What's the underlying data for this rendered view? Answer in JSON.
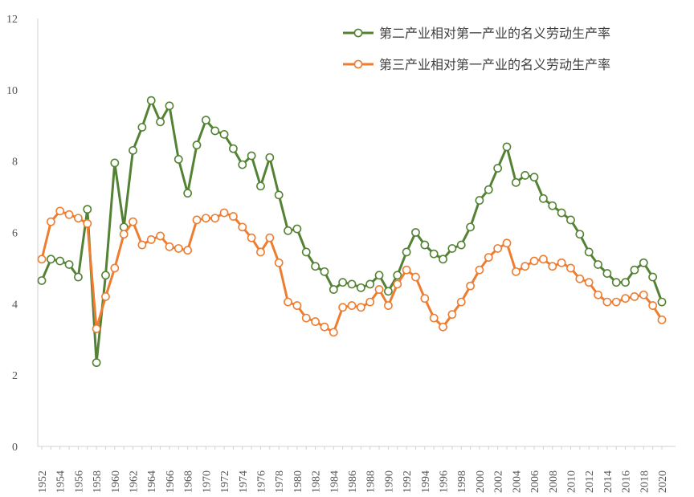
{
  "chart_data": {
    "type": "line",
    "title": "",
    "xlabel": "",
    "ylabel": "",
    "ylim": [
      0,
      12
    ],
    "yticks": [
      0,
      2,
      4,
      6,
      8,
      10,
      12
    ],
    "x": [
      1952,
      1953,
      1954,
      1955,
      1956,
      1957,
      1958,
      1959,
      1960,
      1961,
      1962,
      1963,
      1964,
      1965,
      1966,
      1967,
      1968,
      1969,
      1970,
      1971,
      1972,
      1973,
      1974,
      1975,
      1976,
      1977,
      1978,
      1979,
      1980,
      1981,
      1982,
      1983,
      1984,
      1985,
      1986,
      1987,
      1988,
      1989,
      1990,
      1991,
      1992,
      1993,
      1994,
      1995,
      1996,
      1997,
      1998,
      1999,
      2000,
      2001,
      2002,
      2003,
      2004,
      2005,
      2006,
      2007,
      2008,
      2009,
      2010,
      2011,
      2012,
      2013,
      2014,
      2015,
      2016,
      2017,
      2018,
      2019,
      2020
    ],
    "x_tick_labels": [
      "1952",
      "1954",
      "1956",
      "1958",
      "1960",
      "1962",
      "1964",
      "1966",
      "1968",
      "1970",
      "1972",
      "1974",
      "1976",
      "1978",
      "1980",
      "1982",
      "1984",
      "1986",
      "1988",
      "1990",
      "1992",
      "1994",
      "1996",
      "1998",
      "2000",
      "2002",
      "2004",
      "2006",
      "2008",
      "2010",
      "2012",
      "2014",
      "2016",
      "2018",
      "2020"
    ],
    "grid": false,
    "legend_position": "top-right",
    "series": [
      {
        "name": "第二产业相对第一产业的名义劳动生产率",
        "color": "#548235",
        "values": [
          4.65,
          5.25,
          5.2,
          5.1,
          4.75,
          6.65,
          2.35,
          4.8,
          7.95,
          6.15,
          8.3,
          8.95,
          9.7,
          9.1,
          9.55,
          8.05,
          7.1,
          8.45,
          9.15,
          8.85,
          8.75,
          8.35,
          7.9,
          8.15,
          7.3,
          8.1,
          7.05,
          6.05,
          6.1,
          5.45,
          5.05,
          4.9,
          4.4,
          4.6,
          4.55,
          4.45,
          4.55,
          4.8,
          4.35,
          4.8,
          5.45,
          6.0,
          5.65,
          5.4,
          5.25,
          5.55,
          5.65,
          6.15,
          6.9,
          7.2,
          7.8,
          8.4,
          7.4,
          7.6,
          7.55,
          6.95,
          6.75,
          6.55,
          6.35,
          5.95,
          5.45,
          5.1,
          4.85,
          4.6,
          4.6,
          4.95,
          5.15,
          4.75,
          4.05
        ]
      },
      {
        "name": "第三产业相对第一产业的名义劳动生产率",
        "color": "#ED7D31",
        "values": [
          5.25,
          6.3,
          6.6,
          6.5,
          6.4,
          6.25,
          3.3,
          4.2,
          5.0,
          5.95,
          6.3,
          5.65,
          5.8,
          5.9,
          5.6,
          5.55,
          5.5,
          6.35,
          6.4,
          6.4,
          6.55,
          6.45,
          6.15,
          5.85,
          5.45,
          5.85,
          5.15,
          4.05,
          3.95,
          3.6,
          3.5,
          3.35,
          3.2,
          3.9,
          3.95,
          3.9,
          4.05,
          4.4,
          3.95,
          4.55,
          4.95,
          4.75,
          4.15,
          3.6,
          3.35,
          3.7,
          4.05,
          4.5,
          4.95,
          5.3,
          5.55,
          5.7,
          4.9,
          5.05,
          5.2,
          5.25,
          5.05,
          5.15,
          5.0,
          4.7,
          4.6,
          4.25,
          4.05,
          4.05,
          4.15,
          4.2,
          4.25,
          3.95,
          3.55
        ]
      }
    ]
  }
}
